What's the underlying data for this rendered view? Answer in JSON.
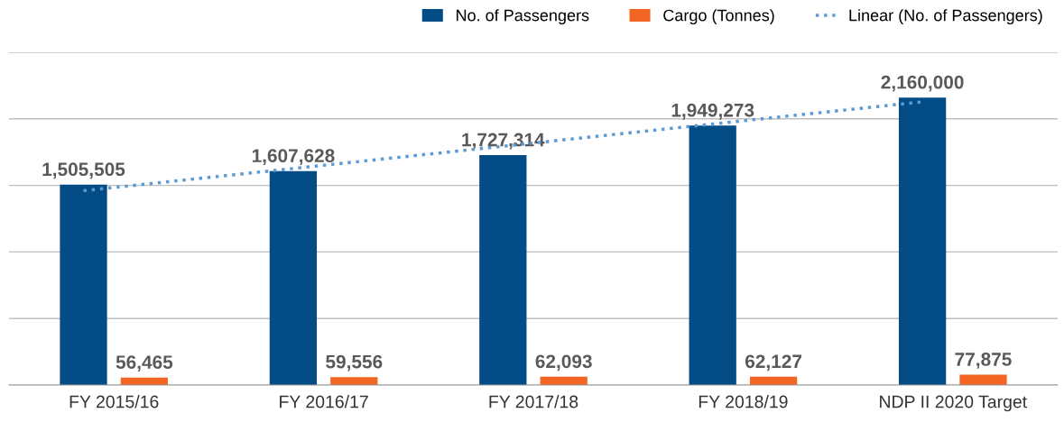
{
  "chart_data": {
    "type": "bar",
    "categories": [
      "FY 2015/16",
      "FY 2016/17",
      "FY 2017/18",
      "FY 2018/19",
      "NDP II 2020 Target"
    ],
    "series": [
      {
        "name": "No. of Passengers",
        "color": "#044c86",
        "values": [
          1505505,
          1607628,
          1727314,
          1949273,
          2160000
        ],
        "value_labels": [
          "1,505,505",
          "1,607,628",
          "1,727,314",
          "1,949,273",
          "2,160,000"
        ]
      },
      {
        "name": "Cargo (Tonnes)",
        "color": "#f26522",
        "values": [
          56465,
          59556,
          62093,
          62127,
          77875
        ],
        "value_labels": [
          "56,465",
          "59,556",
          "62,093",
          "62,127",
          "77,875"
        ]
      },
      {
        "name": "Linear (No. of Passengers)",
        "type": "line",
        "color": "#5b9bd5",
        "line_style": "dotted",
        "values": [
          1460000,
          1627000,
          1794000,
          1961000,
          2128000
        ]
      }
    ],
    "ylim": [
      0,
      2500000
    ],
    "yticks": [
      {
        "value": 0,
        "label": null
      },
      {
        "value": 500000,
        "label": null
      },
      {
        "value": 1000000,
        "label": null
      },
      {
        "value": 1500000,
        "label": null
      },
      {
        "value": 2000000,
        "label": null
      },
      {
        "value": 2500000,
        "label": null
      }
    ],
    "tick_labels": "x",
    "grid": "y",
    "legend": "top right"
  }
}
